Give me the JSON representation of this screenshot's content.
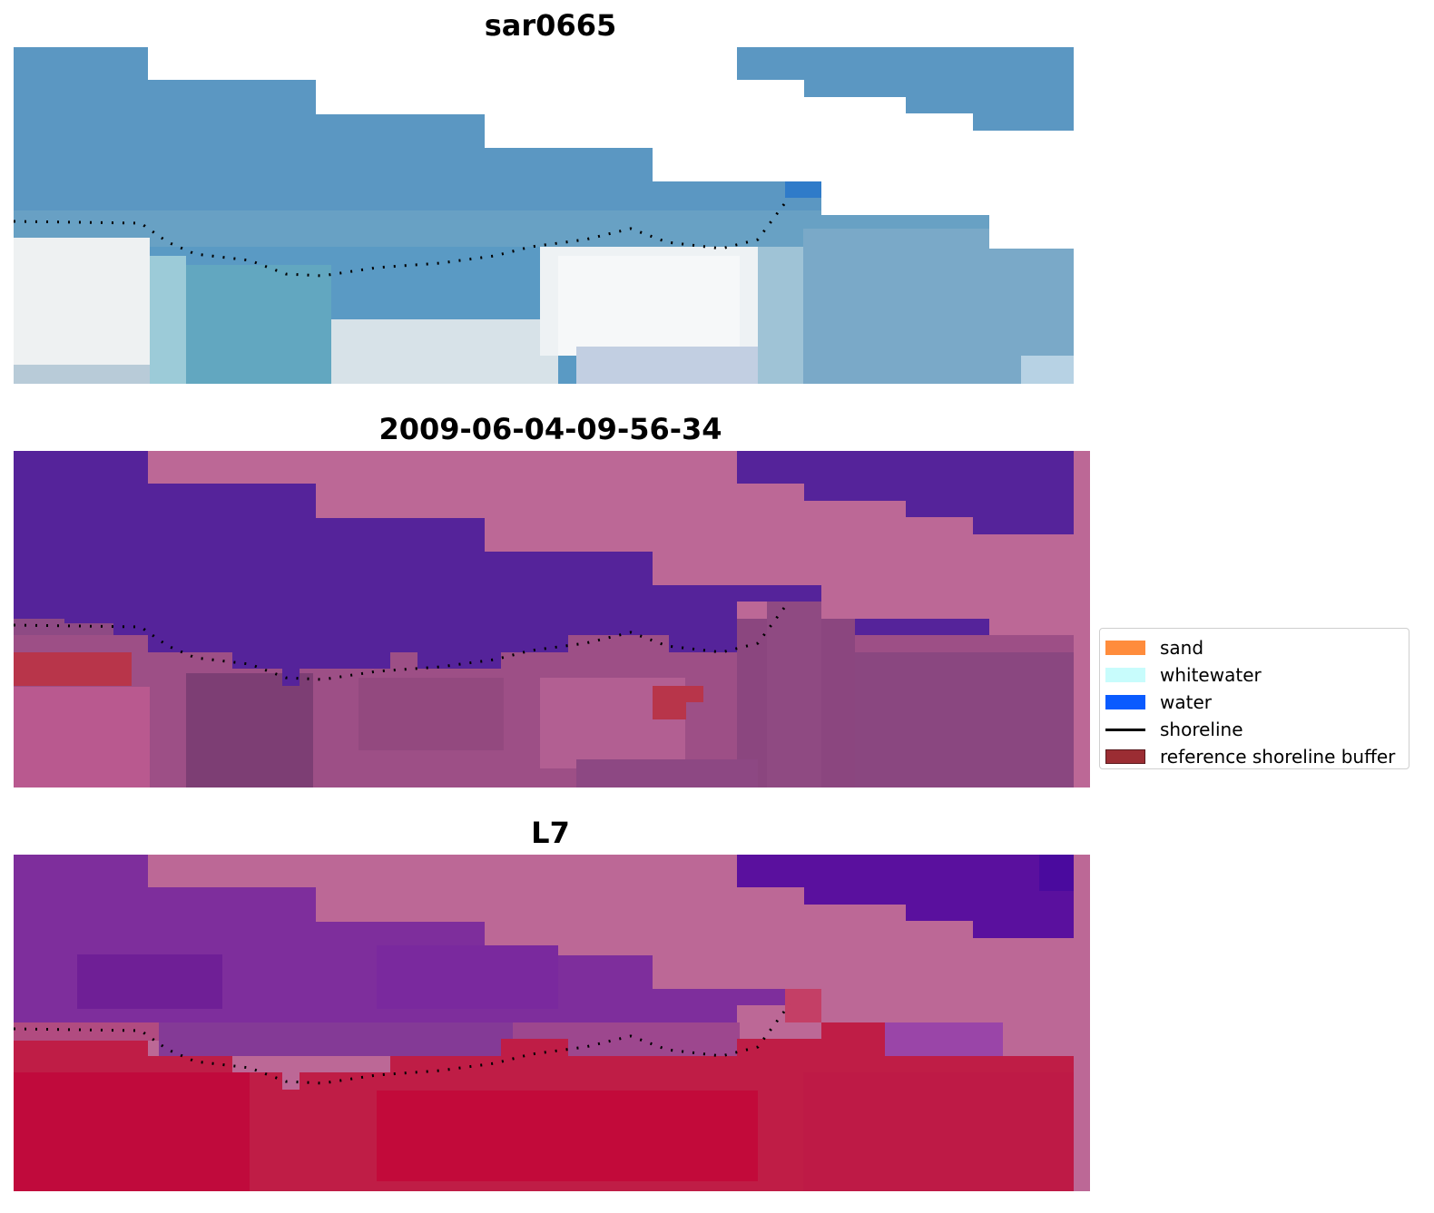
{
  "panels": [
    {
      "id": "rgb",
      "title": "sar0665"
    },
    {
      "id": "classes",
      "title": "2009-06-04-09-56-34"
    },
    {
      "id": "ndwi",
      "title": "L7"
    }
  ],
  "legend": {
    "items": [
      {
        "label": "sand",
        "color": "#ff8c3c",
        "kind": "patch"
      },
      {
        "label": "whitewater",
        "color": "#c8fcfc",
        "kind": "patch"
      },
      {
        "label": "water",
        "color": "#0a5bff",
        "kind": "patch"
      },
      {
        "label": "shoreline",
        "color": "#000000",
        "kind": "line"
      },
      {
        "label": "reference shoreline buffer",
        "color": "#9b2d33",
        "kind": "patch"
      }
    ]
  },
  "colors": {
    "nodata": "#bc6896",
    "water_dark": "#55239a",
    "buffer_red": "#b8354a",
    "land_red": "#bf0f3a",
    "shoreline_dots": "#000000"
  }
}
